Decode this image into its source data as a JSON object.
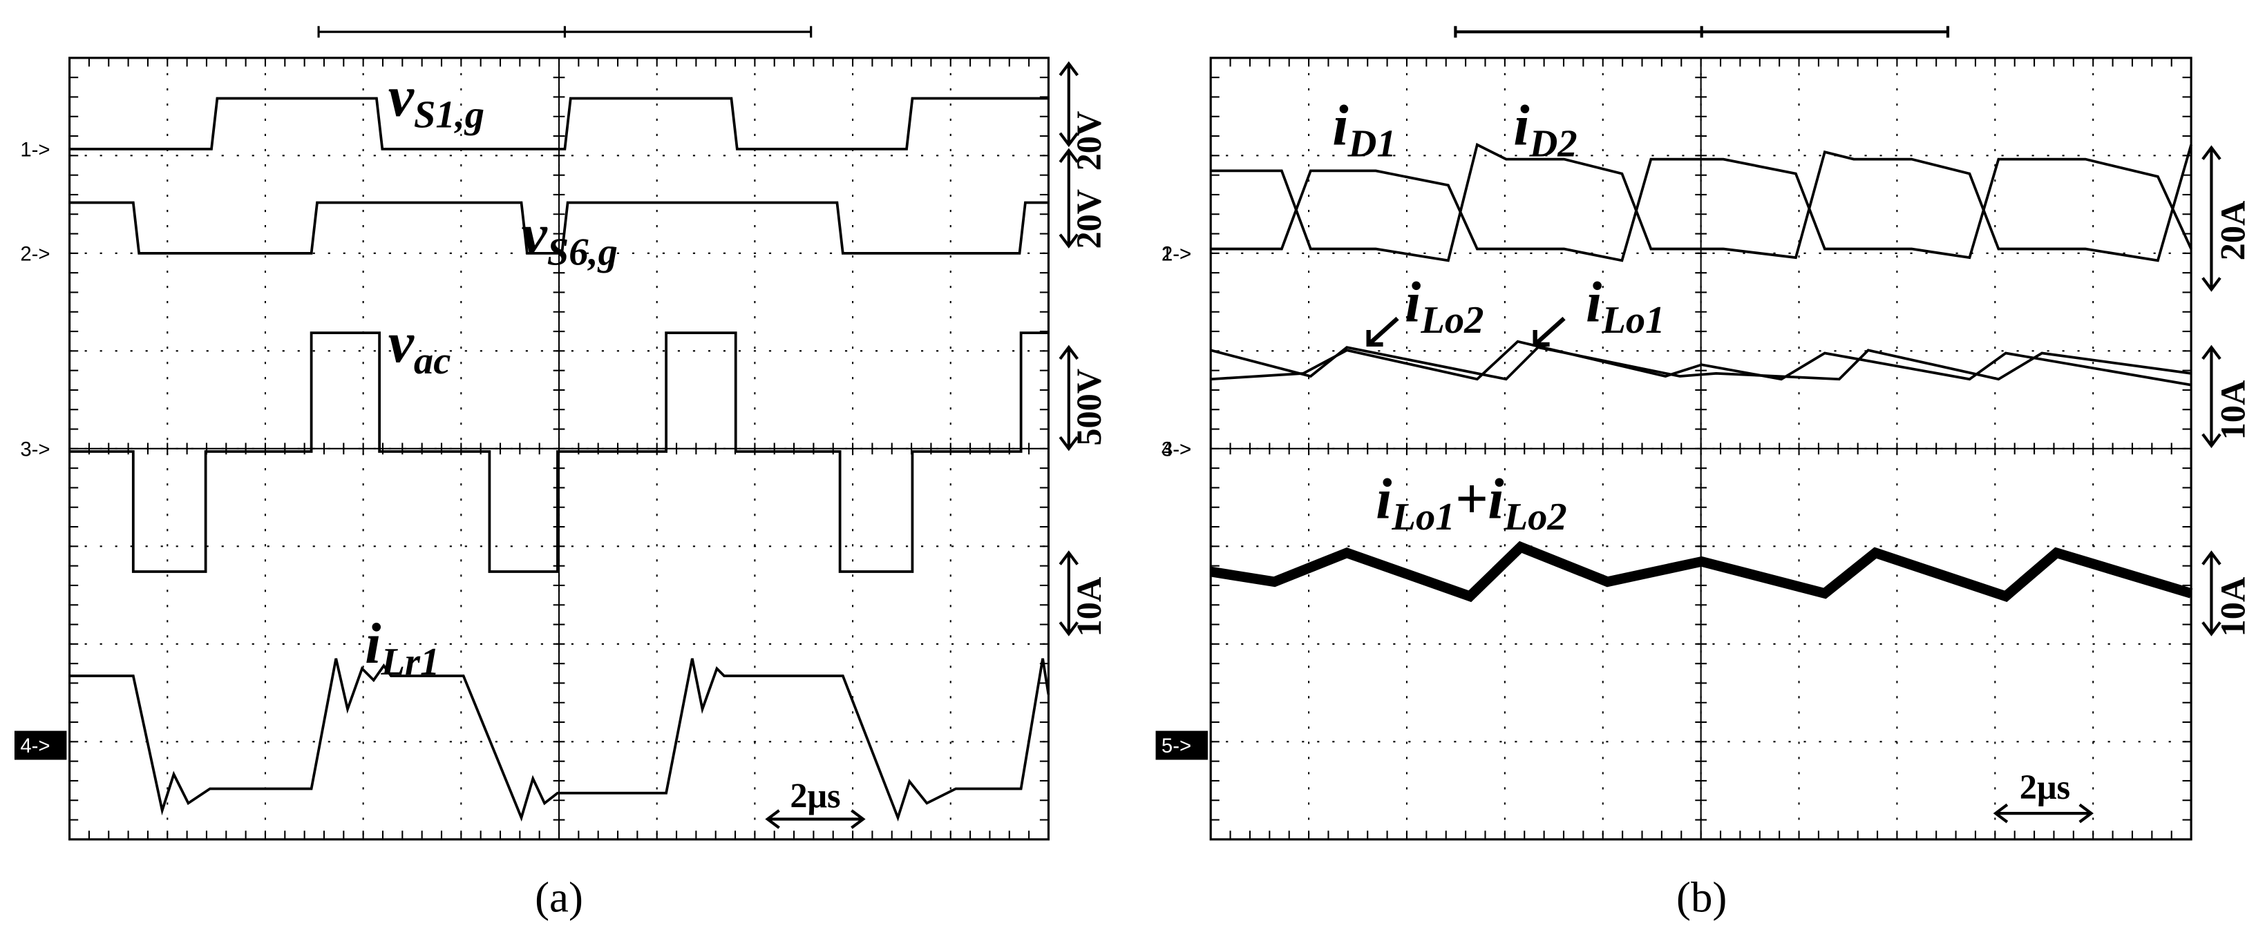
{
  "panels": [
    {
      "caption": "(a)",
      "labels": [
        {
          "main": "v",
          "sub": "S1,g"
        },
        {
          "main": "v",
          "sub": "S6,g"
        },
        {
          "main": "v",
          "sub": "ac"
        },
        {
          "main": "i",
          "sub": "Lr1"
        }
      ],
      "markers": [
        "1->",
        "2->",
        "3->",
        "3->",
        "4->"
      ],
      "scales": [
        "20V",
        "20V",
        "500V",
        "10A"
      ],
      "time_scale": "2μs"
    },
    {
      "caption": "(b)",
      "labels": [
        {
          "main": "i",
          "sub": "D1"
        },
        {
          "main": "i",
          "sub": "D2"
        },
        {
          "main": "i",
          "sub": "Lo2"
        },
        {
          "main": "i",
          "sub": "Lo1"
        },
        {
          "main": "i",
          "sub": "Lo1"
        },
        {
          "main": "+i",
          "sub": "Lo2"
        }
      ],
      "markers": [
        "1->",
        "2->",
        "3->",
        "4->",
        "5->"
      ],
      "scales": [
        "20A",
        "10A",
        "10A"
      ],
      "time_scale": "2μs"
    }
  ]
}
